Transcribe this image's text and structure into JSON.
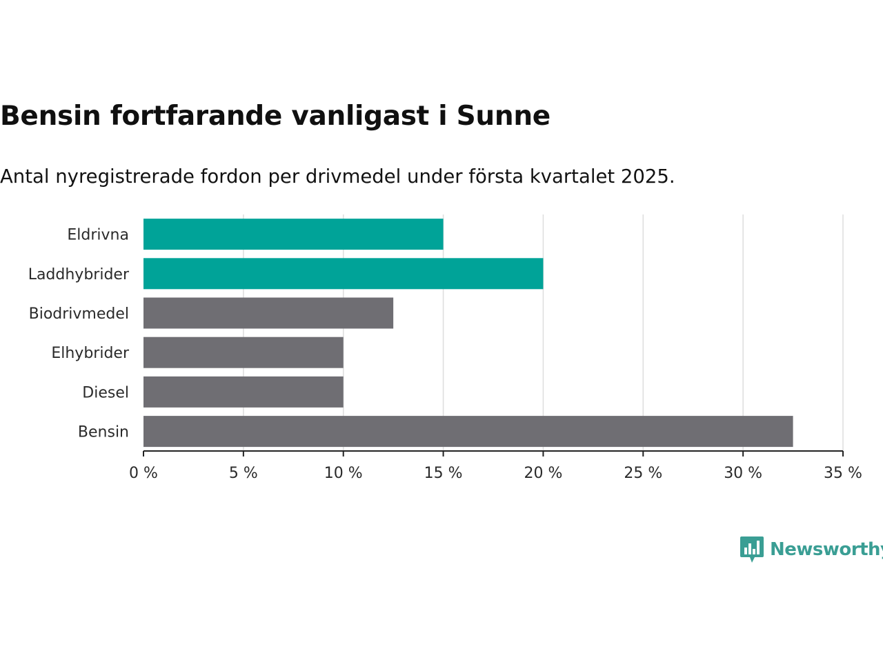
{
  "title": "Bensin fortfarande vanligast i Sunne",
  "subtitle": "Antal nyregistrerade fordon per drivmedel under första kvartalet 2025.",
  "brand": {
    "name": "Newsworthy",
    "icon": "bar-chart-speech-bubble-icon",
    "color": "#3a9e94"
  },
  "chart_data": {
    "type": "bar",
    "orientation": "horizontal",
    "categories": [
      "Eldrivna",
      "Laddhybrider",
      "Biodrivmedel",
      "Elhybrider",
      "Diesel",
      "Bensin"
    ],
    "values": [
      15,
      20,
      12.5,
      10,
      10,
      32.5
    ],
    "highlight": [
      true,
      true,
      false,
      false,
      false,
      false
    ],
    "colors": {
      "highlight": "#00a398",
      "default": "#6f6e73",
      "grid": "#dddddd",
      "axis": "#222222"
    },
    "xlim": [
      0,
      35
    ],
    "xticks": [
      0,
      5,
      10,
      15,
      20,
      25,
      30,
      35
    ],
    "xtick_labels": [
      "0 %",
      "5 %",
      "10 %",
      "15 %",
      "20 %",
      "25 %",
      "30 %",
      "35 %"
    ],
    "grid": true
  }
}
